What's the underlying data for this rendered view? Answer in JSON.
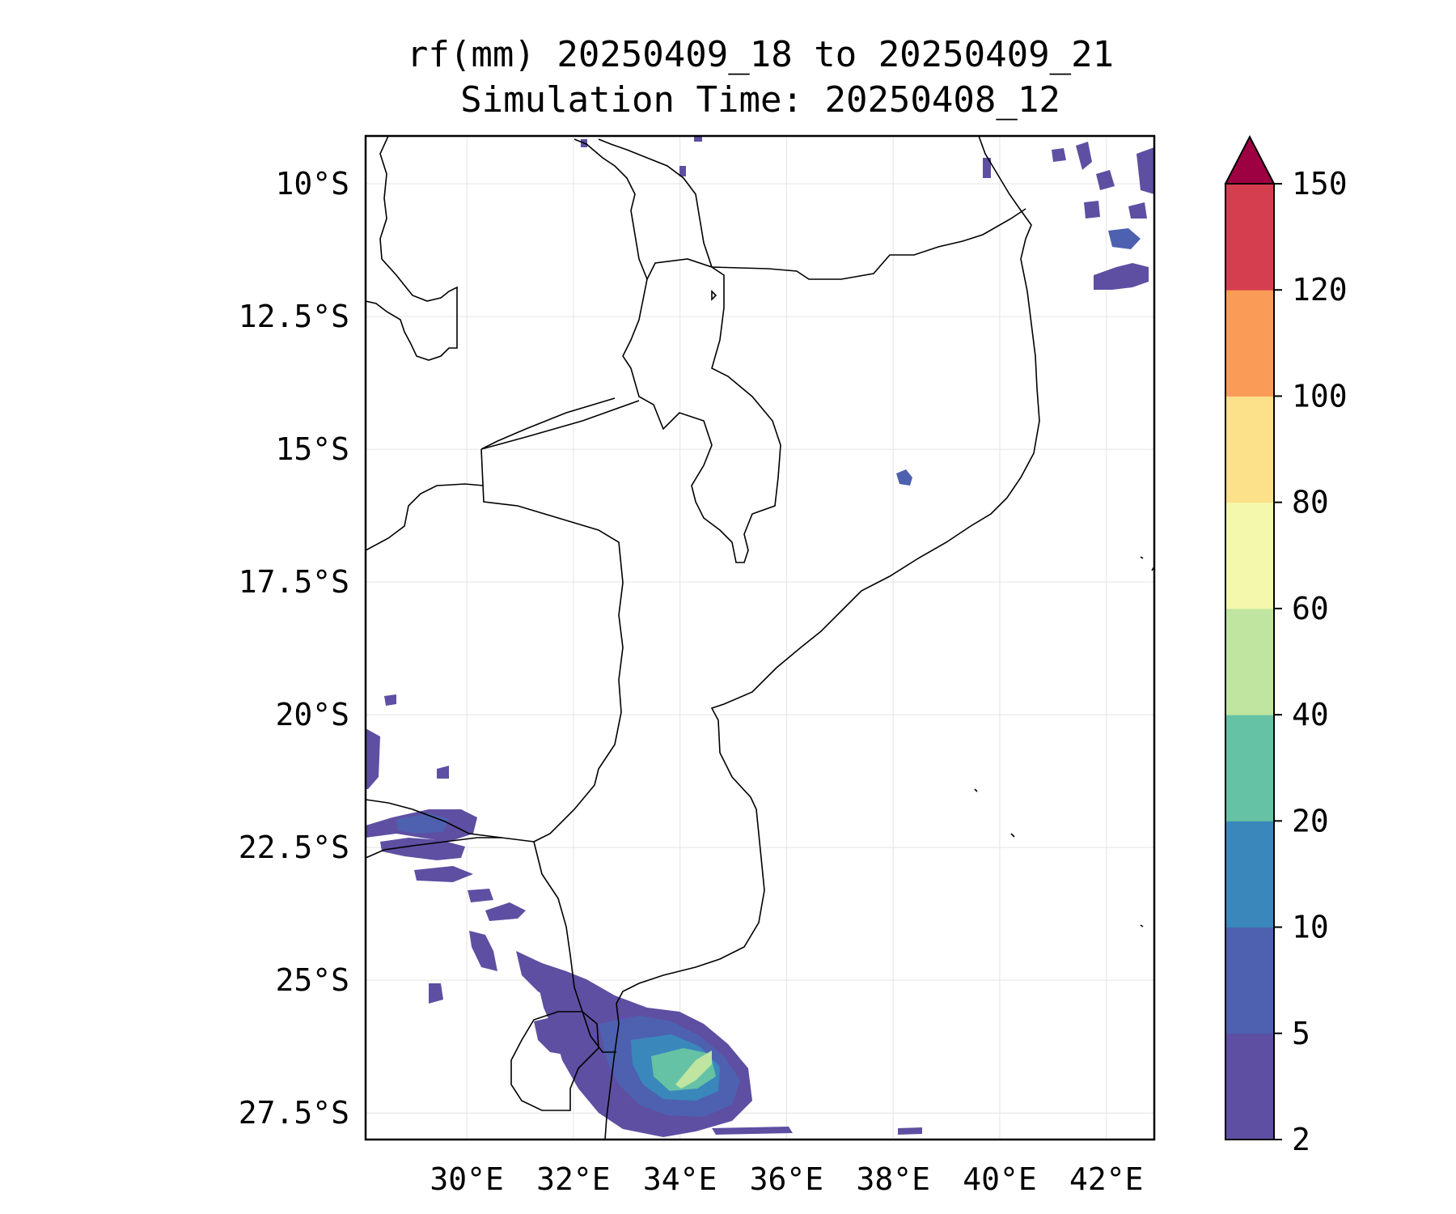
{
  "title": {
    "line1": "rf(mm) 20250409_18 to 20250409_21",
    "line2": "Simulation Time: 20250408_12"
  },
  "map": {
    "lon_range": [
      28.1,
      42.9
    ],
    "lat_range": [
      -9.1,
      -28.0
    ],
    "lon_ticks": [
      {
        "value": 30,
        "label": "30°E"
      },
      {
        "value": 32,
        "label": "32°E"
      },
      {
        "value": 34,
        "label": "34°E"
      },
      {
        "value": 36,
        "label": "36°E"
      },
      {
        "value": 38,
        "label": "38°E"
      },
      {
        "value": 40,
        "label": "40°E"
      },
      {
        "value": 42,
        "label": "42°E"
      }
    ],
    "lat_ticks": [
      {
        "value": -10,
        "label": "10°S"
      },
      {
        "value": -12.5,
        "label": "12.5°S"
      },
      {
        "value": -15,
        "label": "15°S"
      },
      {
        "value": -17.5,
        "label": "17.5°S"
      },
      {
        "value": -20,
        "label": "20°S"
      },
      {
        "value": -22.5,
        "label": "22.5°S"
      },
      {
        "value": -25,
        "label": "25°S"
      },
      {
        "value": -27.5,
        "label": "27.5°S"
      }
    ],
    "grid": true
  },
  "colorbar": {
    "extend": "max",
    "extend_color": "#9e0142",
    "levels": [
      {
        "label": "2"
      },
      {
        "label": "5"
      },
      {
        "label": "10"
      },
      {
        "label": "20"
      },
      {
        "label": "40"
      },
      {
        "label": "60"
      },
      {
        "label": "80"
      },
      {
        "label": "100"
      },
      {
        "label": "120"
      },
      {
        "label": "150"
      }
    ],
    "colors": [
      "#5e4fa2",
      "#4e61b0",
      "#3a87bc",
      "#66c2a5",
      "#bfe5a0",
      "#f4f8ad",
      "#fce08a",
      "#fa9c58",
      "#d53e4f"
    ]
  },
  "chart_data": {
    "type": "heatmap",
    "title": "rf(mm) 20250409_18 to 20250409_21 Simulation Time: 20250408_12",
    "x_ticks": [
      "30°E",
      "32°E",
      "34°E",
      "36°E",
      "38°E",
      "40°E",
      "42°E"
    ],
    "y_ticks": [
      "10°S",
      "12.5°S",
      "15°S",
      "17.5°S",
      "20°S",
      "22.5°S",
      "25°S",
      "27.5°S"
    ],
    "colorbar_levels": [
      2,
      5,
      10,
      20,
      40,
      60,
      80,
      100,
      120,
      150
    ],
    "xlim": [
      28.1,
      42.9
    ],
    "ylim": [
      -28.0,
      -9.1
    ],
    "rain_regions": [
      {
        "lon": 33.8,
        "lat": -26.2,
        "max_level": "40-60",
        "note": "main cell south Mozambique coast"
      },
      {
        "lon": 29.6,
        "lat": -22.0,
        "max_level": "5-10"
      },
      {
        "lon": 29.0,
        "lat": -22.8,
        "max_level": "5-10"
      },
      {
        "lon": 42.2,
        "lat": -10.8,
        "max_level": "5-10"
      },
      {
        "lon": 38.2,
        "lat": -15.5,
        "max_level": "5-10"
      }
    ]
  }
}
